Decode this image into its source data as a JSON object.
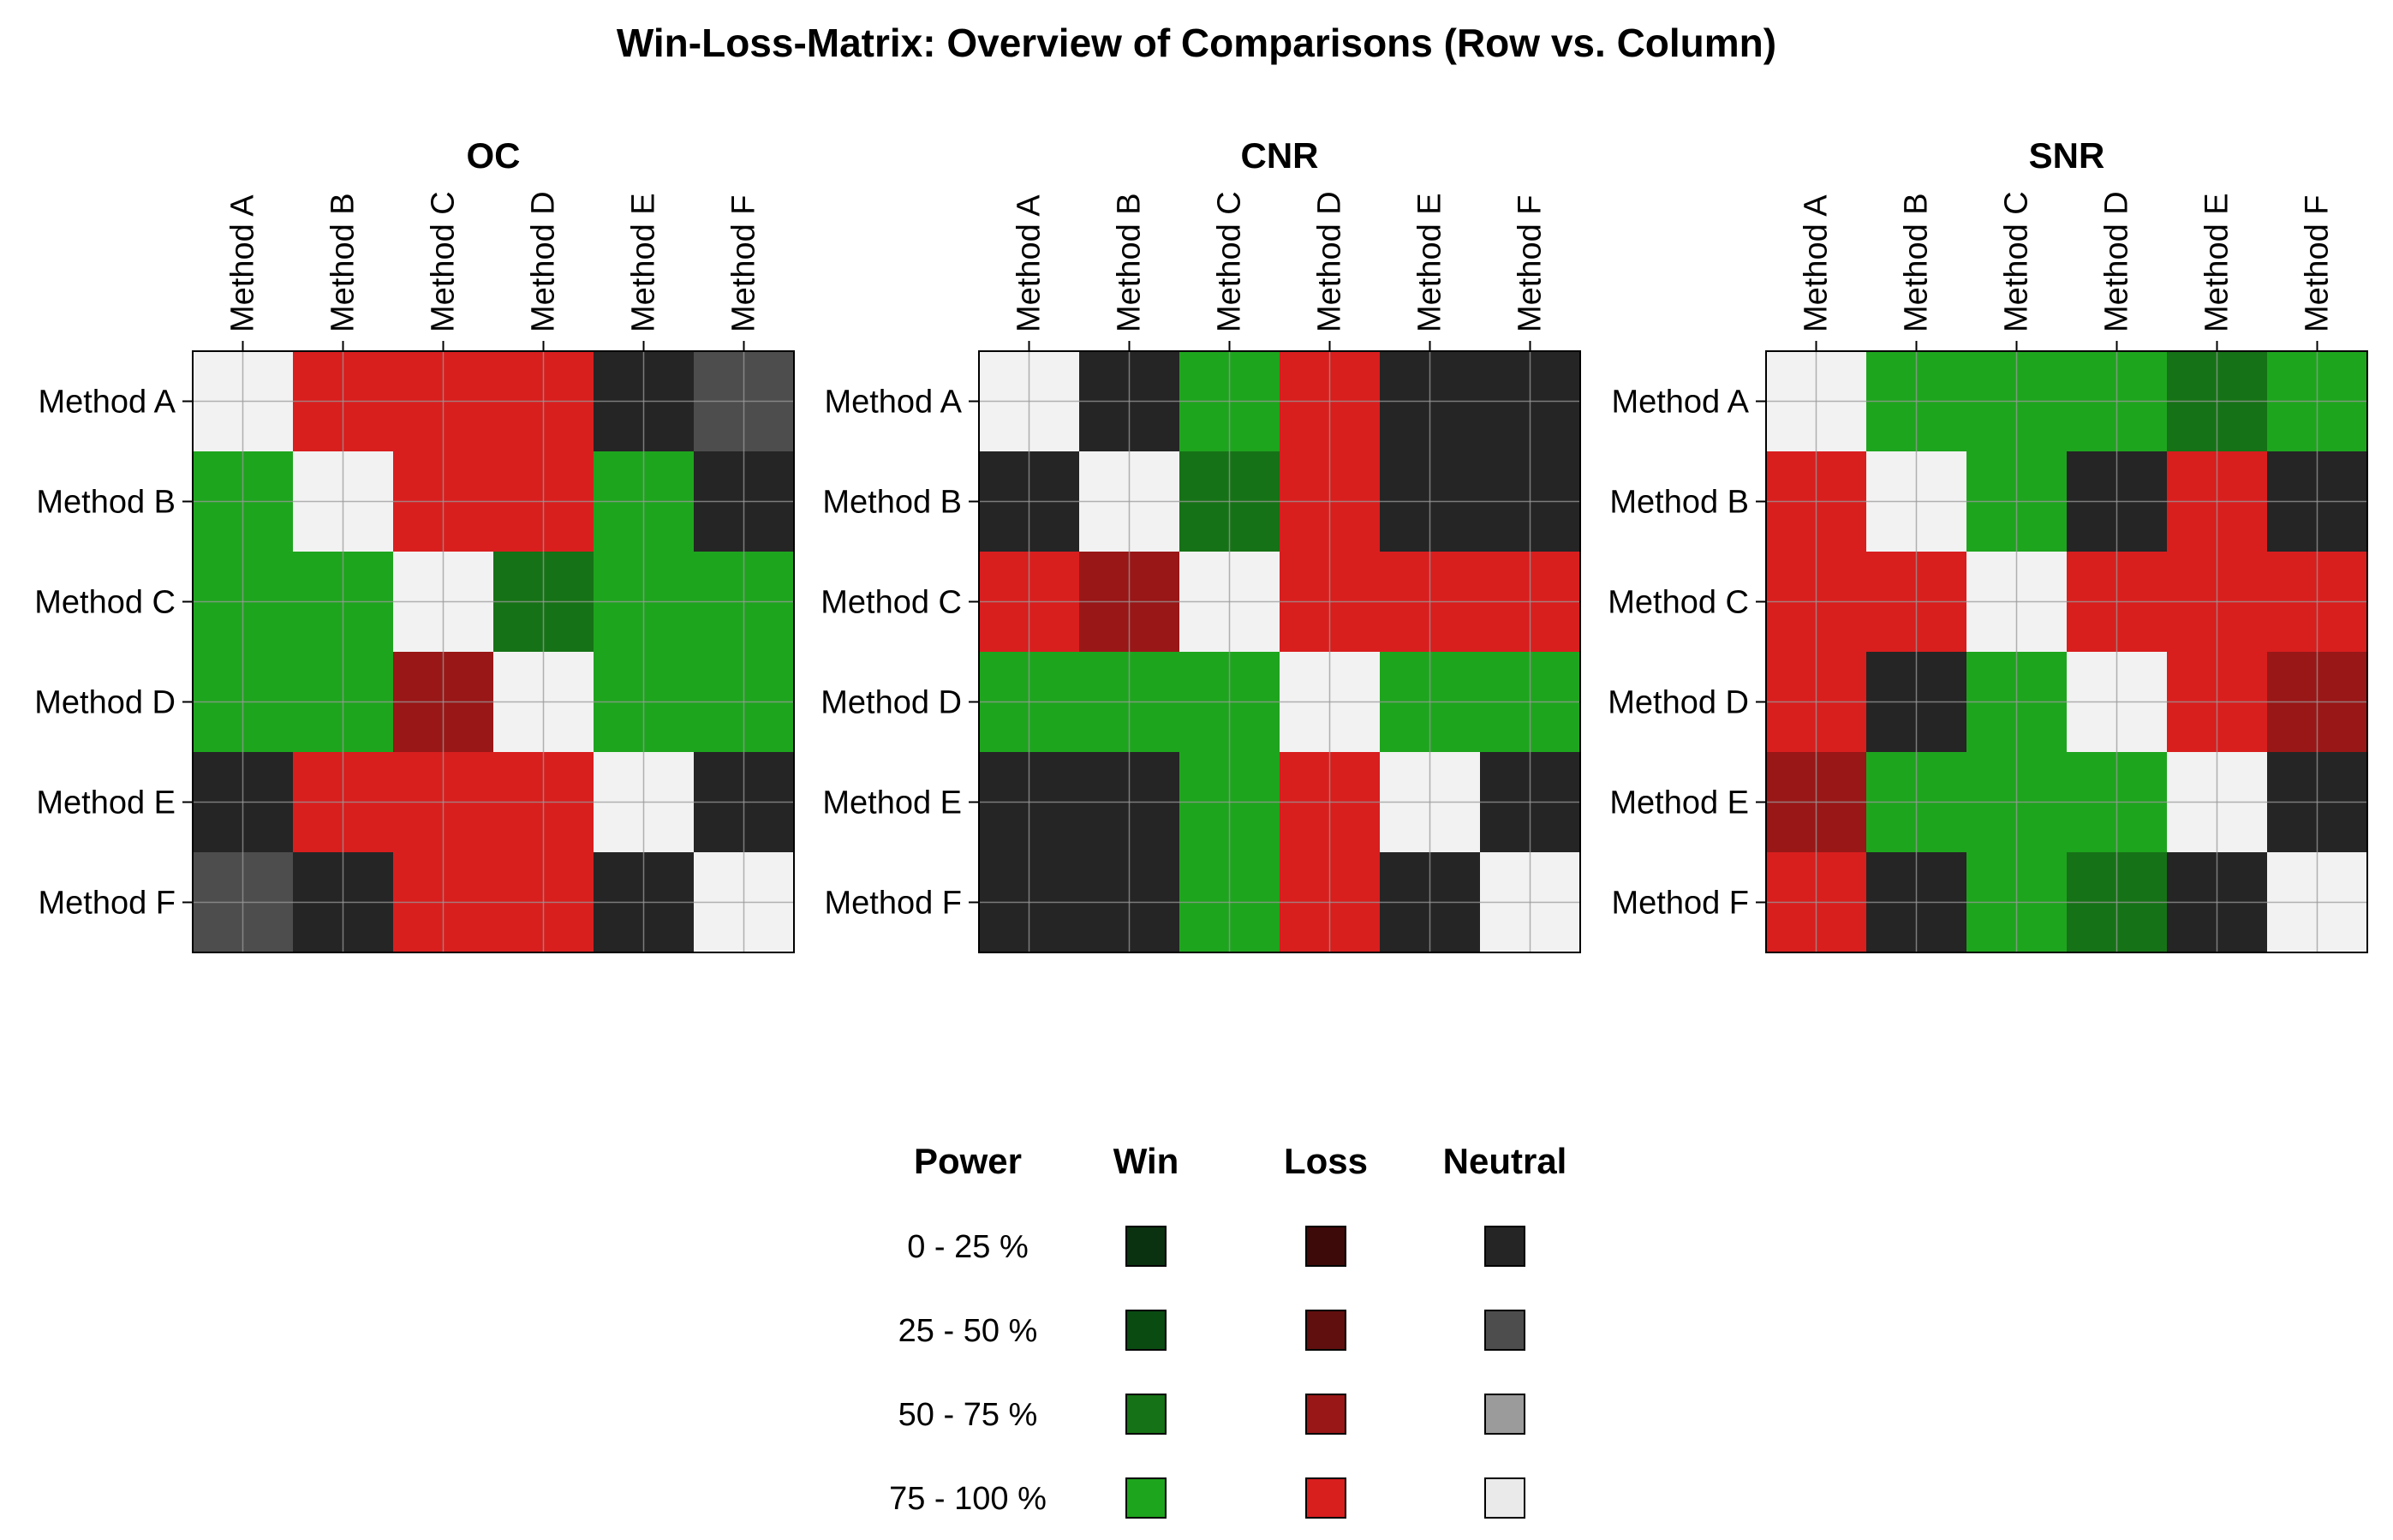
{
  "chart_data": {
    "type": "heatmap",
    "title": "Win-Loss-Matrix: Overview of Comparisons (Row vs. Column)",
    "methods": [
      "Method A",
      "Method B",
      "Method C",
      "Method D",
      "Method E",
      "Method F"
    ],
    "cell_encoding": "row vs. column outcome and power level; D = diagonal (self-comparison)",
    "panels": [
      {
        "title": "OC",
        "cells": [
          [
            {
              "outcome": "D"
            },
            {
              "outcome": "Loss",
              "power": "75 - 100 %"
            },
            {
              "outcome": "Loss",
              "power": "75 - 100 %"
            },
            {
              "outcome": "Loss",
              "power": "75 - 100 %"
            },
            {
              "outcome": "Neutral",
              "power": "0 - 25 %"
            },
            {
              "outcome": "Neutral",
              "power": "25 - 50 %"
            }
          ],
          [
            {
              "outcome": "Win",
              "power": "75 - 100 %"
            },
            {
              "outcome": "D"
            },
            {
              "outcome": "Loss",
              "power": "75 - 100 %"
            },
            {
              "outcome": "Loss",
              "power": "75 - 100 %"
            },
            {
              "outcome": "Win",
              "power": "75 - 100 %"
            },
            {
              "outcome": "Neutral",
              "power": "0 - 25 %"
            }
          ],
          [
            {
              "outcome": "Win",
              "power": "75 - 100 %"
            },
            {
              "outcome": "Win",
              "power": "75 - 100 %"
            },
            {
              "outcome": "D"
            },
            {
              "outcome": "Win",
              "power": "50 - 75 %"
            },
            {
              "outcome": "Win",
              "power": "75 - 100 %"
            },
            {
              "outcome": "Win",
              "power": "75 - 100 %"
            }
          ],
          [
            {
              "outcome": "Win",
              "power": "75 - 100 %"
            },
            {
              "outcome": "Win",
              "power": "75 - 100 %"
            },
            {
              "outcome": "Loss",
              "power": "50 - 75 %"
            },
            {
              "outcome": "D"
            },
            {
              "outcome": "Win",
              "power": "75 - 100 %"
            },
            {
              "outcome": "Win",
              "power": "75 - 100 %"
            }
          ],
          [
            {
              "outcome": "Neutral",
              "power": "0 - 25 %"
            },
            {
              "outcome": "Loss",
              "power": "75 - 100 %"
            },
            {
              "outcome": "Loss",
              "power": "75 - 100 %"
            },
            {
              "outcome": "Loss",
              "power": "75 - 100 %"
            },
            {
              "outcome": "D"
            },
            {
              "outcome": "Neutral",
              "power": "0 - 25 %"
            }
          ],
          [
            {
              "outcome": "Neutral",
              "power": "25 - 50 %"
            },
            {
              "outcome": "Neutral",
              "power": "0 - 25 %"
            },
            {
              "outcome": "Loss",
              "power": "75 - 100 %"
            },
            {
              "outcome": "Loss",
              "power": "75 - 100 %"
            },
            {
              "outcome": "Neutral",
              "power": "0 - 25 %"
            },
            {
              "outcome": "D"
            }
          ]
        ]
      },
      {
        "title": "CNR",
        "cells": [
          [
            {
              "outcome": "D"
            },
            {
              "outcome": "Neutral",
              "power": "0 - 25 %"
            },
            {
              "outcome": "Win",
              "power": "75 - 100 %"
            },
            {
              "outcome": "Loss",
              "power": "75 - 100 %"
            },
            {
              "outcome": "Neutral",
              "power": "0 - 25 %"
            },
            {
              "outcome": "Neutral",
              "power": "0 - 25 %"
            }
          ],
          [
            {
              "outcome": "Neutral",
              "power": "0 - 25 %"
            },
            {
              "outcome": "D"
            },
            {
              "outcome": "Win",
              "power": "50 - 75 %"
            },
            {
              "outcome": "Loss",
              "power": "75 - 100 %"
            },
            {
              "outcome": "Neutral",
              "power": "0 - 25 %"
            },
            {
              "outcome": "Neutral",
              "power": "0 - 25 %"
            }
          ],
          [
            {
              "outcome": "Loss",
              "power": "75 - 100 %"
            },
            {
              "outcome": "Loss",
              "power": "50 - 75 %"
            },
            {
              "outcome": "D"
            },
            {
              "outcome": "Loss",
              "power": "75 - 100 %"
            },
            {
              "outcome": "Loss",
              "power": "75 - 100 %"
            },
            {
              "outcome": "Loss",
              "power": "75 - 100 %"
            }
          ],
          [
            {
              "outcome": "Win",
              "power": "75 - 100 %"
            },
            {
              "outcome": "Win",
              "power": "75 - 100 %"
            },
            {
              "outcome": "Win",
              "power": "75 - 100 %"
            },
            {
              "outcome": "D"
            },
            {
              "outcome": "Win",
              "power": "75 - 100 %"
            },
            {
              "outcome": "Win",
              "power": "75 - 100 %"
            }
          ],
          [
            {
              "outcome": "Neutral",
              "power": "0 - 25 %"
            },
            {
              "outcome": "Neutral",
              "power": "0 - 25 %"
            },
            {
              "outcome": "Win",
              "power": "75 - 100 %"
            },
            {
              "outcome": "Loss",
              "power": "75 - 100 %"
            },
            {
              "outcome": "D"
            },
            {
              "outcome": "Neutral",
              "power": "0 - 25 %"
            }
          ],
          [
            {
              "outcome": "Neutral",
              "power": "0 - 25 %"
            },
            {
              "outcome": "Neutral",
              "power": "0 - 25 %"
            },
            {
              "outcome": "Win",
              "power": "75 - 100 %"
            },
            {
              "outcome": "Loss",
              "power": "75 - 100 %"
            },
            {
              "outcome": "Neutral",
              "power": "0 - 25 %"
            },
            {
              "outcome": "D"
            }
          ]
        ]
      },
      {
        "title": "SNR",
        "cells": [
          [
            {
              "outcome": "D"
            },
            {
              "outcome": "Win",
              "power": "75 - 100 %"
            },
            {
              "outcome": "Win",
              "power": "75 - 100 %"
            },
            {
              "outcome": "Win",
              "power": "75 - 100 %"
            },
            {
              "outcome": "Win",
              "power": "50 - 75 %"
            },
            {
              "outcome": "Win",
              "power": "75 - 100 %"
            }
          ],
          [
            {
              "outcome": "Loss",
              "power": "75 - 100 %"
            },
            {
              "outcome": "D"
            },
            {
              "outcome": "Win",
              "power": "75 - 100 %"
            },
            {
              "outcome": "Neutral",
              "power": "0 - 25 %"
            },
            {
              "outcome": "Loss",
              "power": "75 - 100 %"
            },
            {
              "outcome": "Neutral",
              "power": "0 - 25 %"
            }
          ],
          [
            {
              "outcome": "Loss",
              "power": "75 - 100 %"
            },
            {
              "outcome": "Loss",
              "power": "75 - 100 %"
            },
            {
              "outcome": "D"
            },
            {
              "outcome": "Loss",
              "power": "75 - 100 %"
            },
            {
              "outcome": "Loss",
              "power": "75 - 100 %"
            },
            {
              "outcome": "Loss",
              "power": "75 - 100 %"
            }
          ],
          [
            {
              "outcome": "Loss",
              "power": "75 - 100 %"
            },
            {
              "outcome": "Neutral",
              "power": "0 - 25 %"
            },
            {
              "outcome": "Win",
              "power": "75 - 100 %"
            },
            {
              "outcome": "D"
            },
            {
              "outcome": "Loss",
              "power": "75 - 100 %"
            },
            {
              "outcome": "Loss",
              "power": "50 - 75 %"
            }
          ],
          [
            {
              "outcome": "Loss",
              "power": "50 - 75 %"
            },
            {
              "outcome": "Win",
              "power": "75 - 100 %"
            },
            {
              "outcome": "Win",
              "power": "75 - 100 %"
            },
            {
              "outcome": "Win",
              "power": "75 - 100 %"
            },
            {
              "outcome": "D"
            },
            {
              "outcome": "Neutral",
              "power": "0 - 25 %"
            }
          ],
          [
            {
              "outcome": "Loss",
              "power": "75 - 100 %"
            },
            {
              "outcome": "Neutral",
              "power": "0 - 25 %"
            },
            {
              "outcome": "Win",
              "power": "75 - 100 %"
            },
            {
              "outcome": "Win",
              "power": "50 - 75 %"
            },
            {
              "outcome": "Neutral",
              "power": "0 - 25 %"
            },
            {
              "outcome": "D"
            }
          ]
        ]
      }
    ],
    "legend": {
      "headers": [
        "Power",
        "Win",
        "Loss",
        "Neutral"
      ],
      "power_levels": [
        "0 - 25 %",
        "25 - 50 %",
        "50 - 75 %",
        "75 - 100 %"
      ],
      "colors": {
        "Win": [
          "#0b3210",
          "#0a4b12",
          "#167216",
          "#1ea51e"
        ],
        "Loss": [
          "#3e0909",
          "#610e0e",
          "#991717",
          "#d91e1e"
        ],
        "Neutral": [
          "#252525",
          "#4d4d4d",
          "#9b9b9b",
          "#eaeaea"
        ]
      },
      "diagonal_color": "#f2f2f2",
      "placement": "bottom-center"
    },
    "grid": true
  }
}
